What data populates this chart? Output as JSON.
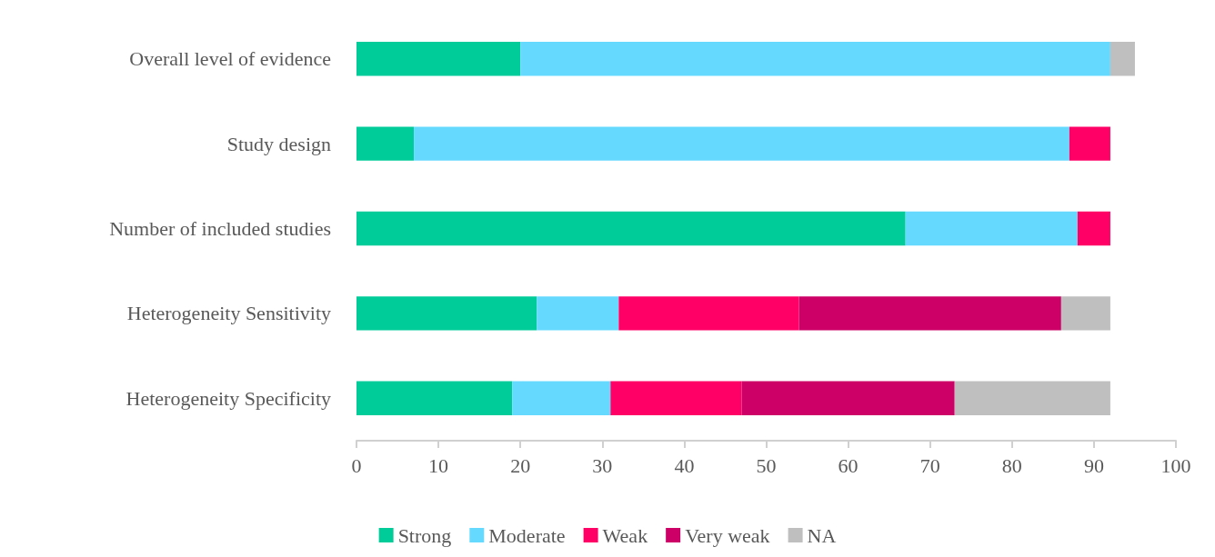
{
  "chart_data": {
    "type": "bar",
    "orientation": "horizontal",
    "stacked": true,
    "categories": [
      "Overall level of evidence",
      "Study design",
      "Number of included studies",
      "Heterogeneity Sensitivity",
      "Heterogeneity Specificity"
    ],
    "series": [
      {
        "name": "Strong",
        "color": "#00cc99",
        "values": [
          20,
          7,
          67,
          22,
          19
        ]
      },
      {
        "name": "Moderate",
        "color": "#66d9ff",
        "values": [
          72,
          80,
          21,
          10,
          12
        ]
      },
      {
        "name": "Weak",
        "color": "#ff0066",
        "values": [
          null,
          5,
          4,
          22,
          16
        ]
      },
      {
        "name": "Very weak",
        "color": "#cc0066",
        "values": [
          null,
          null,
          null,
          32,
          26
        ]
      },
      {
        "name": "NA",
        "color": "#bfbfbf",
        "values": [
          3,
          null,
          null,
          6,
          19
        ]
      }
    ],
    "xlim": [
      0,
      100
    ],
    "xticks": [
      0,
      10,
      20,
      30,
      40,
      50,
      60,
      70,
      80,
      90,
      100
    ],
    "grid": false,
    "legend": "bottom"
  }
}
